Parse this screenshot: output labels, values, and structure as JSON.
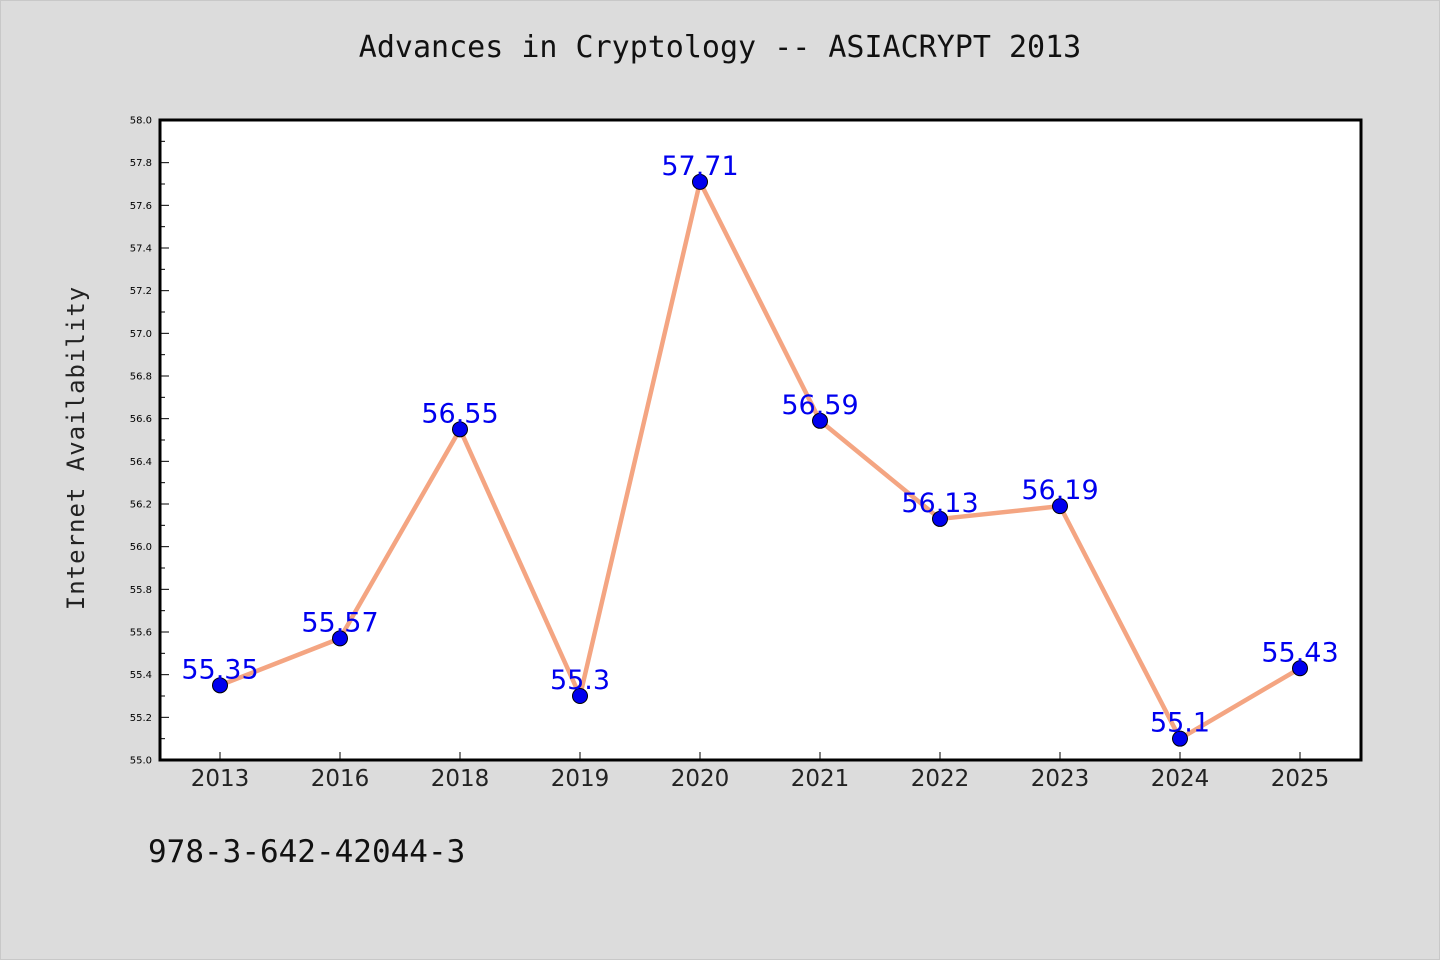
{
  "chart_data": {
    "type": "line",
    "title": "Advances in Cryptology -- ASIACRYPT 2013",
    "xlabel": "",
    "ylabel": "Internet Availability",
    "categories": [
      "2013",
      "2016",
      "2018",
      "2019",
      "2020",
      "2021",
      "2022",
      "2023",
      "2024",
      "2025"
    ],
    "series": [
      {
        "values": [
          55.35,
          55.57,
          56.55,
          55.3,
          57.71,
          56.59,
          56.13,
          56.19,
          55.1,
          55.43
        ],
        "labels": [
          "55.35",
          "55.57",
          "56.55",
          "55.3",
          "57.71",
          "56.59",
          "56.13",
          "56.19",
          "55.1",
          "55.43"
        ]
      }
    ],
    "ylim": [
      55.0,
      58.0
    ],
    "yticks": [
      "55.0",
      "55.2",
      "55.4",
      "55.6",
      "55.8",
      "56.0",
      "56.2",
      "56.4",
      "56.6",
      "56.8",
      "57.0",
      "57.2",
      "57.4",
      "57.6",
      "57.8",
      "58.0"
    ],
    "grid": false,
    "colors": {
      "line": "#f4a582",
      "marker": "#0000ee",
      "label": "#0000ee",
      "plot_background": "#ffffff",
      "figure_background": "#dcdcdc"
    }
  },
  "footnote": "978-3-642-42044-3"
}
